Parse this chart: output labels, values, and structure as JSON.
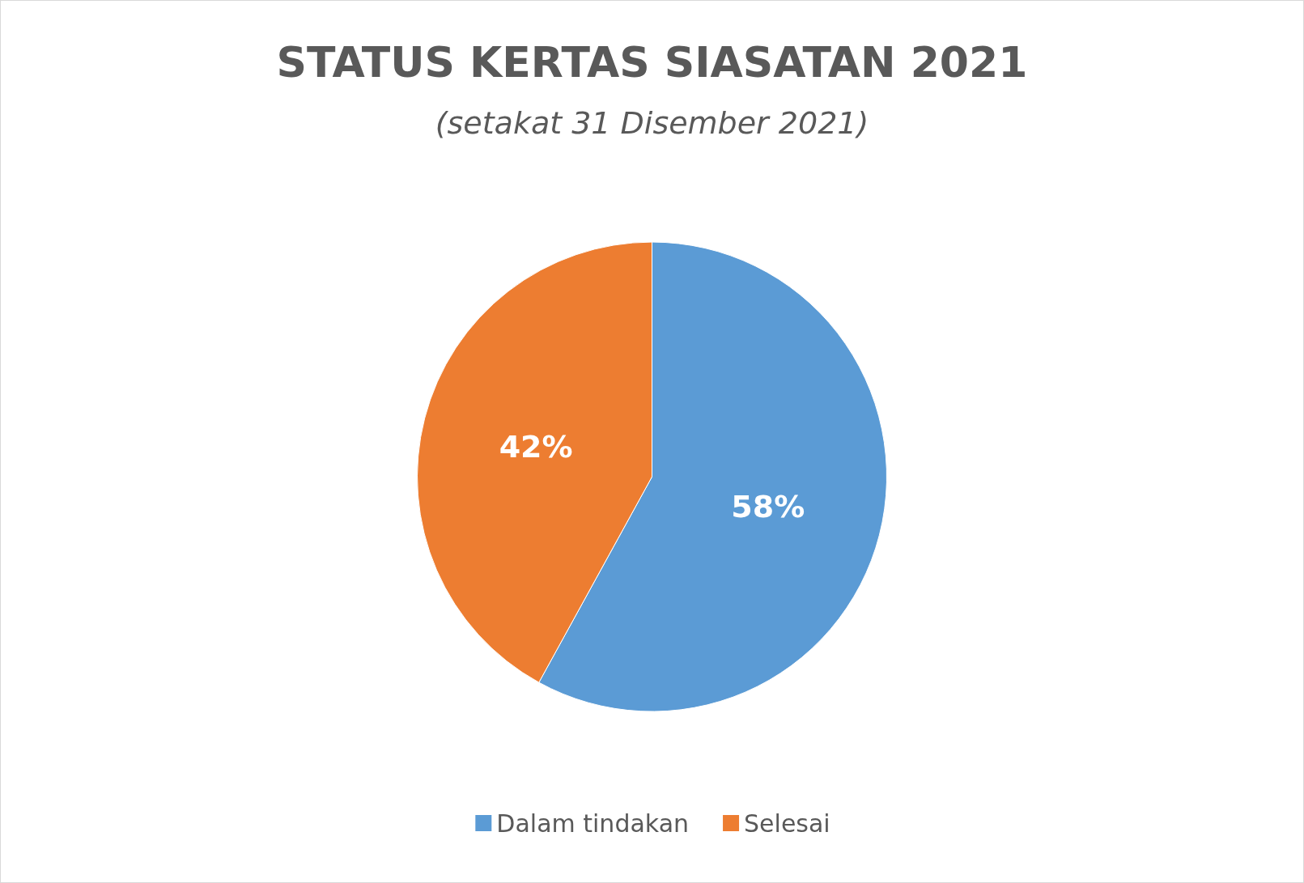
{
  "chart_data": {
    "type": "pie",
    "title": "STATUS KERTAS SIASATAN 2021",
    "subtitle": "(setakat 31 Disember 2021)",
    "categories": [
      "Dalam tindakan",
      "Selesai"
    ],
    "values": [
      58,
      42
    ],
    "colors": [
      "#5b9bd5",
      "#ed7d31"
    ],
    "value_labels": [
      "58%",
      "42%"
    ],
    "legend": "bottom"
  }
}
